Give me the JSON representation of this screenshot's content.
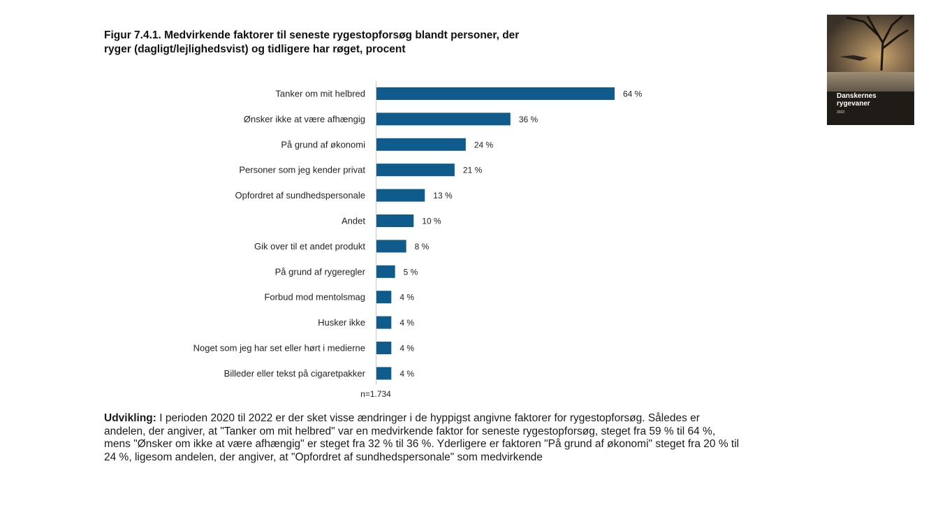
{
  "figure": {
    "title_line1": "Figur 7.4.1. Medvirkende faktorer til seneste rygestopforsøg blandt personer, der",
    "title_line2": "ryger (dagligt/lejlighedsvist) og tidligere har røget, procent",
    "n_label": "n=1.734"
  },
  "chart_data": {
    "type": "bar",
    "orientation": "horizontal",
    "categories": [
      "Tanker om mit helbred",
      "Ønsker ikke at være afhængig",
      "På grund af økonomi",
      "Personer som jeg kender privat",
      "Opfordret af sundhedspersonale",
      "Andet",
      "Gik over til et andet produkt",
      "På grund af rygeregler",
      "Forbud mod mentolsmag",
      "Husker ikke",
      "Noget som jeg har set eller hørt i medierne",
      "Billeder eller tekst på cigaretpakker"
    ],
    "values": [
      64,
      36,
      24,
      21,
      13,
      10,
      8,
      5,
      4,
      4,
      4,
      4
    ],
    "value_labels": [
      "64 %",
      "36 %",
      "24 %",
      "21 %",
      "13 %",
      "10 %",
      "8 %",
      "5 %",
      "4 %",
      "4 %",
      "4 %",
      "4 %"
    ],
    "unit": "%",
    "xlim": [
      0,
      64
    ],
    "grid": false,
    "bar_color": "#0f5c8c"
  },
  "cover": {
    "title_line1": "Danskernes",
    "title_line2": "rygevaner",
    "year": "2022"
  },
  "text": {
    "lead_bold": "Udvikling:",
    "body": " I perioden 2020 til 2022 er der sket visse ændringer i de hyppigst angivne faktorer for rygestopforsøg. Således er andelen, der angiver, at \"Tanker om mit helbred\" var en medvirkende faktor for seneste rygestopforsøg, steget fra 59 % til 64 %, mens \"Ønsker om ikke at være afhængig\" er steget fra 32 % til 36 %. Yderligere er faktoren \"På grund af økonomi\" steget fra 20 % til 24 %, ligesom andelen, der angiver, at \"Opfordret af sundhedspersonale\" som medvirkende"
  }
}
